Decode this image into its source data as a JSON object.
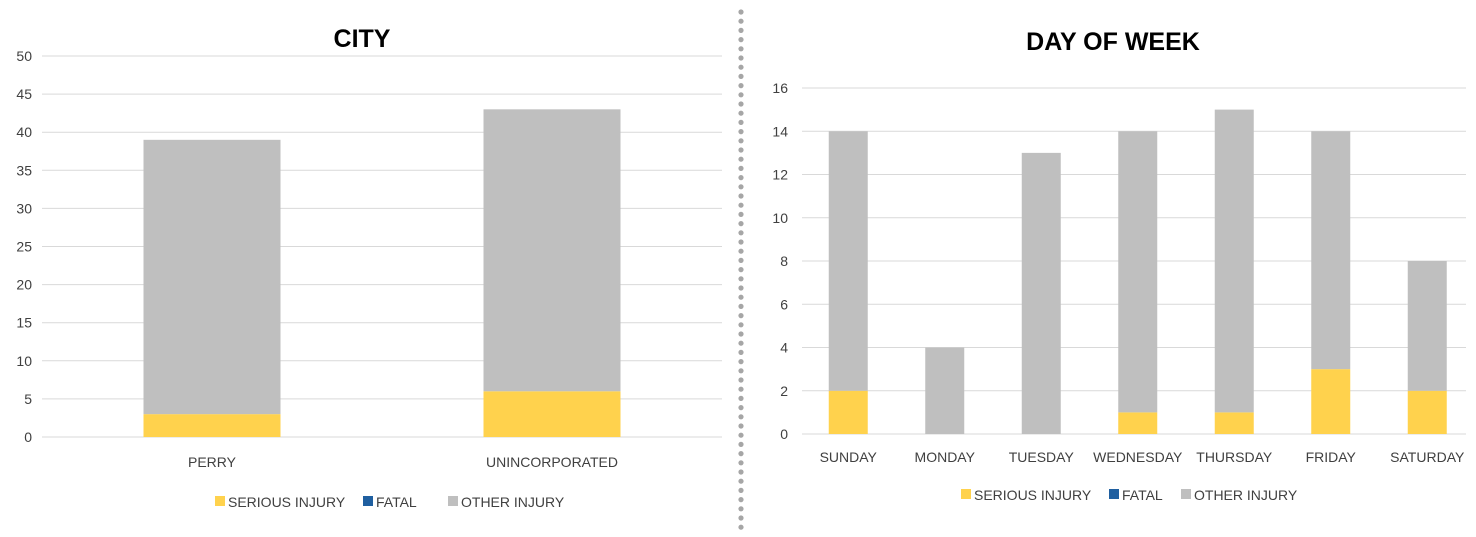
{
  "chart_data": [
    {
      "type": "bar",
      "stacked": true,
      "title": "CITY",
      "categories": [
        "PERRY",
        "UNINCORPORATED"
      ],
      "series": [
        {
          "name": "SERIOUS INJURY",
          "values": [
            3,
            6
          ],
          "color": "#FFD24D"
        },
        {
          "name": "FATAL",
          "values": [
            0,
            0
          ],
          "color": "#1F5FA0"
        },
        {
          "name": "OTHER INJURY",
          "values": [
            36,
            37
          ],
          "color": "#BFBFBF"
        }
      ],
      "ylim": [
        0,
        50
      ],
      "yticks": [
        "0",
        "5",
        "10",
        "15",
        "20",
        "25",
        "30",
        "35",
        "40",
        "45",
        "50"
      ],
      "grid": true,
      "legend": "bottom"
    },
    {
      "type": "bar",
      "stacked": true,
      "title": "DAY OF WEEK",
      "categories": [
        "SUNDAY",
        "MONDAY",
        "TUESDAY",
        "WEDNESDAY",
        "THURSDAY",
        "FRIDAY",
        "SATURDAY"
      ],
      "series": [
        {
          "name": "SERIOUS INJURY",
          "values": [
            2,
            0,
            0,
            1,
            1,
            3,
            2
          ],
          "color": "#FFD24D"
        },
        {
          "name": "FATAL",
          "values": [
            0,
            0,
            0,
            0,
            0,
            0,
            0
          ],
          "color": "#1F5FA0"
        },
        {
          "name": "OTHER INJURY",
          "values": [
            12,
            4,
            13,
            13,
            14,
            11,
            6
          ],
          "color": "#BFBFBF"
        }
      ],
      "ylim": [
        0,
        16
      ],
      "yticks": [
        "0",
        "2",
        "4",
        "6",
        "8",
        "10",
        "12",
        "14",
        "16"
      ],
      "grid": true,
      "legend": "bottom"
    }
  ],
  "divider_color": "#A6A6A6"
}
